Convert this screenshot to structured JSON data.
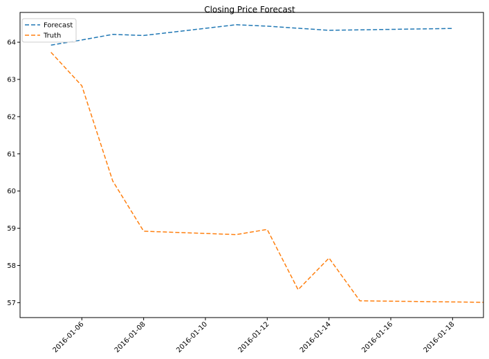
{
  "chart_data": {
    "type": "line",
    "title": "Closing Price Forecast",
    "xlabel": "",
    "ylabel": "",
    "x_tick_labels": [
      "2016-01-06",
      "2016-01-08",
      "2016-01-10",
      "2016-01-12",
      "2016-01-14",
      "2016-01-16",
      "2016-01-18"
    ],
    "y_ticks": [
      57,
      58,
      59,
      60,
      61,
      62,
      63,
      64
    ],
    "xlim": [
      "2016-01-04",
      "2016-01-19"
    ],
    "ylim": [
      56.6,
      64.8
    ],
    "grid": false,
    "legend_position": "top-left",
    "series": [
      {
        "name": "Forecast",
        "color": "#1f77b4",
        "dash": "dashed",
        "points": [
          {
            "x": "2016-01-05",
            "y": 63.92
          },
          {
            "x": "2016-01-06",
            "y": 64.06
          },
          {
            "x": "2016-01-07",
            "y": 64.21
          },
          {
            "x": "2016-01-08",
            "y": 64.18
          },
          {
            "x": "2016-01-11",
            "y": 64.47
          },
          {
            "x": "2016-01-12",
            "y": 64.43
          },
          {
            "x": "2016-01-14",
            "y": 64.32
          },
          {
            "x": "2016-01-18",
            "y": 64.37
          }
        ]
      },
      {
        "name": "Truth",
        "color": "#ff7f0e",
        "dash": "dashed",
        "points": [
          {
            "x": "2016-01-05",
            "y": 63.73
          },
          {
            "x": "2016-01-06",
            "y": 62.83
          },
          {
            "x": "2016-01-07",
            "y": 60.27
          },
          {
            "x": "2016-01-08",
            "y": 58.92
          },
          {
            "x": "2016-01-11",
            "y": 58.83
          },
          {
            "x": "2016-01-12",
            "y": 58.97
          },
          {
            "x": "2016-01-13",
            "y": 57.35
          },
          {
            "x": "2016-01-14",
            "y": 58.2
          },
          {
            "x": "2016-01-15",
            "y": 57.05
          },
          {
            "x": "2016-01-19",
            "y": 57.01
          }
        ]
      }
    ]
  }
}
